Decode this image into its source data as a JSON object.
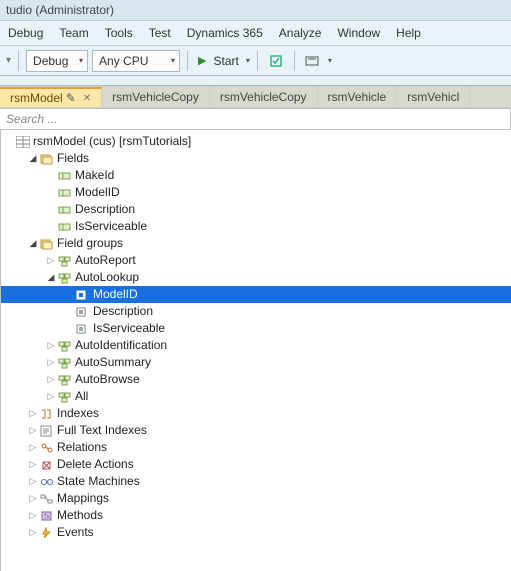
{
  "title": "tudio  (Administrator)",
  "menu": [
    "Debug",
    "Team",
    "Tools",
    "Test",
    "Dynamics 365",
    "Analyze",
    "Window",
    "Help"
  ],
  "toolbar": {
    "config": "Debug",
    "platform": "Any CPU",
    "start": "Start"
  },
  "tabs": [
    {
      "label": "rsmModel",
      "active": true,
      "dirty": true,
      "closable": true
    },
    {
      "label": "rsmVehicleCopy",
      "active": false
    },
    {
      "label": "rsmVehicleCopy",
      "active": false
    },
    {
      "label": "rsmVehicle",
      "active": false
    },
    {
      "label": "rsmVehicl",
      "active": false
    }
  ],
  "search_placeholder": "Search ...",
  "tree": {
    "root": "rsmModel (cus) [rsmTutorials]",
    "root_icon": "table",
    "nodes": [
      {
        "label": "Fields",
        "icon": "folder-fields",
        "exp": "down",
        "depth": 1
      },
      {
        "label": "MakeId",
        "icon": "field",
        "exp": "",
        "depth": 2
      },
      {
        "label": "ModelID",
        "icon": "field",
        "exp": "",
        "depth": 2
      },
      {
        "label": "Description",
        "icon": "field",
        "exp": "",
        "depth": 2
      },
      {
        "label": "IsServiceable",
        "icon": "field",
        "exp": "",
        "depth": 2
      },
      {
        "label": "Field groups",
        "icon": "folder-groups",
        "exp": "down",
        "depth": 1
      },
      {
        "label": "AutoReport",
        "icon": "group",
        "exp": "right",
        "depth": 2
      },
      {
        "label": "AutoLookup",
        "icon": "group",
        "exp": "down",
        "depth": 2
      },
      {
        "label": "ModelID",
        "icon": "ref",
        "exp": "",
        "depth": 3,
        "selected": true
      },
      {
        "label": "Description",
        "icon": "ref",
        "exp": "",
        "depth": 3
      },
      {
        "label": "IsServiceable",
        "icon": "ref",
        "exp": "",
        "depth": 3
      },
      {
        "label": "AutoIdentification",
        "icon": "group",
        "exp": "right",
        "depth": 2
      },
      {
        "label": "AutoSummary",
        "icon": "group",
        "exp": "right",
        "depth": 2
      },
      {
        "label": "AutoBrowse",
        "icon": "group",
        "exp": "right",
        "depth": 2
      },
      {
        "label": "All",
        "icon": "group",
        "exp": "right",
        "depth": 2
      },
      {
        "label": "Indexes",
        "icon": "indexes",
        "exp": "right",
        "depth": 1
      },
      {
        "label": "Full Text Indexes",
        "icon": "fulltext",
        "exp": "right",
        "depth": 1
      },
      {
        "label": "Relations",
        "icon": "relations",
        "exp": "right",
        "depth": 1
      },
      {
        "label": "Delete Actions",
        "icon": "delete",
        "exp": "right",
        "depth": 1
      },
      {
        "label": "State Machines",
        "icon": "state",
        "exp": "right",
        "depth": 1
      },
      {
        "label": "Mappings",
        "icon": "mappings",
        "exp": "right",
        "depth": 1
      },
      {
        "label": "Methods",
        "icon": "methods",
        "exp": "right",
        "depth": 1
      },
      {
        "label": "Events",
        "icon": "events",
        "exp": "right",
        "depth": 1
      }
    ]
  },
  "colors": {
    "selection": "#1a6fe0",
    "tab_active_bg": "#fbe8a6",
    "bg": "#e8f2f7"
  }
}
